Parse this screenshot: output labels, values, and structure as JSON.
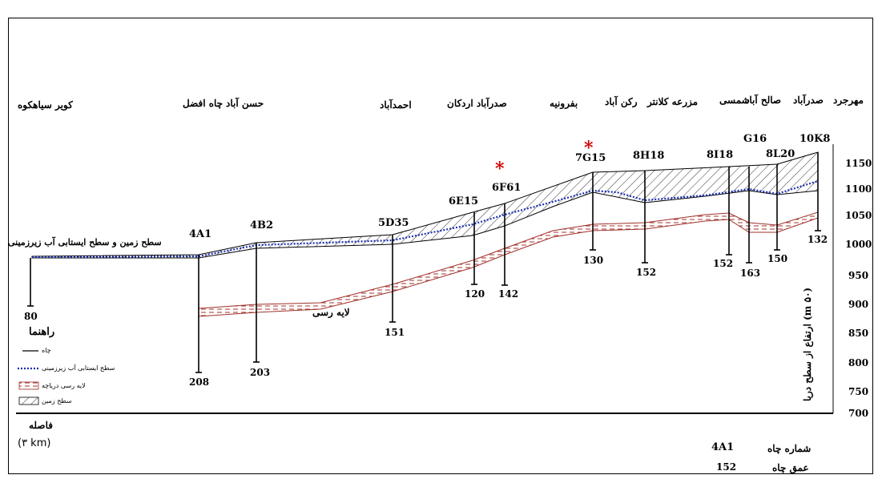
{
  "header_text": "",
  "villages": [
    {
      "name": "مهرجرد"
    },
    {
      "name": "صدرآباد"
    },
    {
      "name": "صالح آباد"
    },
    {
      "name": "شمسی"
    },
    {
      "name": "مزرعه کلانتر"
    },
    {
      "name": "رکن آباد"
    },
    {
      "name": "بفرونیه"
    },
    {
      "name": "صدرآباد اردکان"
    },
    {
      "name": "احمدآباد"
    },
    {
      "name": "حسن آباد"
    },
    {
      "name": "چاه افضل"
    },
    {
      "name": "کویر سیاهکوه"
    }
  ],
  "wells": [
    {
      "id": "10K8",
      "depth": "132"
    },
    {
      "id": "G16",
      "depth": "150"
    },
    {
      "id": "8L20",
      "depth": "150"
    },
    {
      "id": "8I18",
      "depth": "152"
    },
    {
      "id": "8H18",
      "depth": "152"
    },
    {
      "id": "7G15",
      "depth": "130"
    },
    {
      "id": "6F61",
      "depth": "142"
    },
    {
      "id": "6E15",
      "depth": "120"
    },
    {
      "id": "5D35",
      "depth": "151"
    },
    {
      "id": "4B2",
      "depth": "203"
    },
    {
      "id": "4A1",
      "depth": "208"
    },
    {
      "id": "",
      "depth": "80"
    }
  ],
  "extra_depth_label": "163",
  "stars": [
    "*",
    "*"
  ],
  "y_axis": {
    "ticks": [
      "1150",
      "1100",
      "1050",
      "1000",
      "950",
      "900",
      "850",
      "800",
      "750",
      "700"
    ],
    "label": "ارتفاع از سطح دریا (m ۵۰)"
  },
  "annotations": {
    "ground_water_surface": "سطح زمین و سطح ایستابی آب زیرزمینی",
    "clay_layer": "لایه رسی"
  },
  "legend": {
    "title": "راهنما",
    "items": [
      {
        "label": "چاه",
        "icon": "well-line-icon"
      },
      {
        "label": "سطح ایستابی آب زیرزمینی",
        "icon": "water-table-dotted-icon"
      },
      {
        "label": "لایه رسی دریاچه",
        "icon": "clay-layer-icon"
      },
      {
        "label": "سطح زمین",
        "icon": "ground-hatch-icon"
      }
    ]
  },
  "distance": {
    "label": "فاصله",
    "scale": "(۳ km)"
  },
  "key": {
    "well_number_label": "شماره چاه",
    "well_number_value": "4A1",
    "well_depth_label": "عمق چاه",
    "well_depth_value": "152"
  },
  "colors": {
    "water_table": "#1a2fb0",
    "clay": "#a0302a",
    "star": "#d00000",
    "ink": "#000000"
  }
}
